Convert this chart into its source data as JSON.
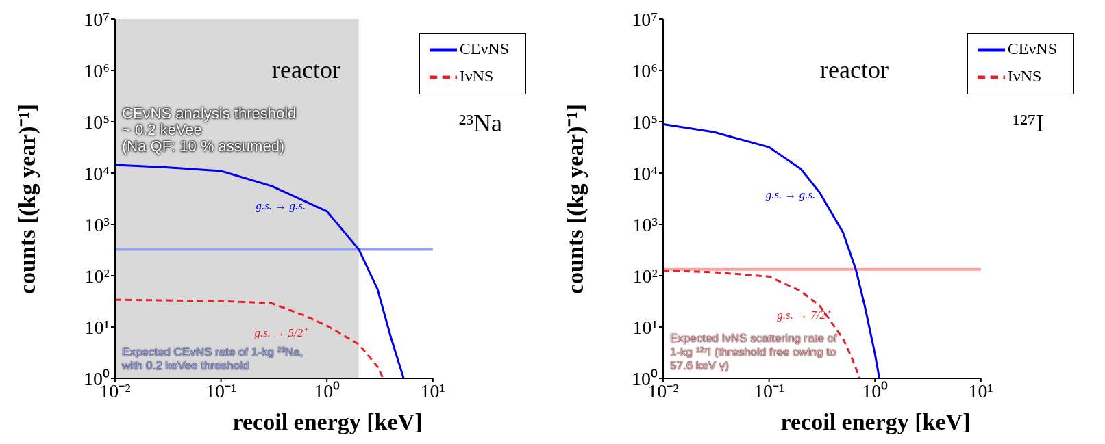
{
  "chart_data": [
    {
      "type": "line",
      "xlabel": "recoil energy [keV]",
      "ylabel": "counts [(kg year)⁻¹]",
      "log": "xy",
      "marker": "none",
      "legend": "top right",
      "xlim": [
        0.01,
        10
      ],
      "xticks": [
        {
          "value": 0.01,
          "label": "10⁻²"
        },
        {
          "value": 0.1,
          "label": "10⁻¹"
        },
        {
          "value": 1,
          "label": "10⁰"
        },
        {
          "value": 10,
          "label": "10¹"
        }
      ],
      "ylim": [
        1,
        10000000
      ],
      "yticks": [
        {
          "value": 1,
          "label": "10⁰"
        },
        {
          "value": 10,
          "label": "10¹"
        },
        {
          "value": 100,
          "label": "10²"
        },
        {
          "value": 1000,
          "label": "10³"
        },
        {
          "value": 10000,
          "label": "10⁴"
        },
        {
          "value": 100000,
          "label": "10⁵"
        },
        {
          "value": 1000000,
          "label": "10⁶"
        },
        {
          "value": 10000000,
          "label": "10⁷"
        }
      ],
      "series": [
        {
          "name": "CEνNS",
          "color": "#0000ee",
          "line_style": "solid",
          "x": [
            0.01,
            0.03,
            0.1,
            0.3,
            1,
            2,
            3,
            4,
            5.3
          ],
          "values": [
            14500,
            13000,
            11000,
            5600,
            1800,
            325,
            55,
            6.5,
            1
          ]
        },
        {
          "name": "IνNS",
          "color": "#e8202a",
          "line_style": "dashed",
          "x": [
            0.01,
            0.1,
            0.3,
            0.6,
            1,
            2,
            3,
            3.4
          ],
          "values": [
            34,
            32,
            29,
            17,
            10.6,
            4.6,
            1.7,
            1
          ]
        }
      ],
      "bands": [
        {
          "axis": "x",
          "from": 0.01,
          "to": 2,
          "color": "#d9d9d9",
          "label": "CEνNS analysis threshold\n~ 0.2 keVee\n(Na QF: 10 % assumed)"
        }
      ],
      "ref_lines": [
        {
          "axis": "y",
          "value": 325,
          "color": "#98a2f2",
          "label": "Expected CEνNS rate of 1-kg ²³Na,\nwith 0.2 keVee threshold"
        }
      ],
      "annotations": [
        "reactor",
        "²³Na",
        "g.s. → g.s.",
        "g.s. → 5/2⁺"
      ]
    },
    {
      "type": "line",
      "xlabel": "recoil energy [keV]",
      "ylabel": "counts [(kg year)⁻¹]",
      "log": "xy",
      "marker": "none",
      "legend": "top right",
      "xlim": [
        0.01,
        10
      ],
      "xticks": [
        {
          "value": 0.01,
          "label": "10⁻²"
        },
        {
          "value": 0.1,
          "label": "10⁻¹"
        },
        {
          "value": 1,
          "label": "10⁰"
        },
        {
          "value": 10,
          "label": "10¹"
        }
      ],
      "ylim": [
        1,
        10000000
      ],
      "yticks": [
        {
          "value": 1,
          "label": "10⁰"
        },
        {
          "value": 10,
          "label": "10¹"
        },
        {
          "value": 100,
          "label": "10²"
        },
        {
          "value": 1000,
          "label": "10³"
        },
        {
          "value": 10000,
          "label": "10⁴"
        },
        {
          "value": 100000,
          "label": "10⁵"
        },
        {
          "value": 1000000,
          "label": "10⁶"
        },
        {
          "value": 10000000,
          "label": "10⁷"
        }
      ],
      "series": [
        {
          "name": "CEνNS",
          "color": "#0000ee",
          "line_style": "solid",
          "x": [
            0.01,
            0.03,
            0.1,
            0.2,
            0.3,
            0.5,
            0.66,
            0.8,
            1,
            1.1
          ],
          "values": [
            90000,
            63000,
            32000,
            12000,
            4200,
            690,
            132,
            26,
            3,
            1
          ]
        },
        {
          "name": "IνNS",
          "color": "#e8202a",
          "line_style": "dashed",
          "x": [
            0.01,
            0.03,
            0.1,
            0.2,
            0.3,
            0.5,
            0.6,
            0.72
          ],
          "values": [
            126,
            117,
            96,
            50,
            26,
            5.9,
            2.6,
            1
          ]
        }
      ],
      "ref_lines": [
        {
          "axis": "y",
          "value": 133,
          "color": "#f5a3a3",
          "label": "Expected IνNS scattering rate of\n1-kg ¹²⁷I (threshold free owing to\n57.6 keV γ)"
        }
      ],
      "annotations": [
        "reactor",
        "¹²⁷I",
        "g.s. → g.s.",
        "g.s. → 7/2⁺"
      ]
    }
  ]
}
